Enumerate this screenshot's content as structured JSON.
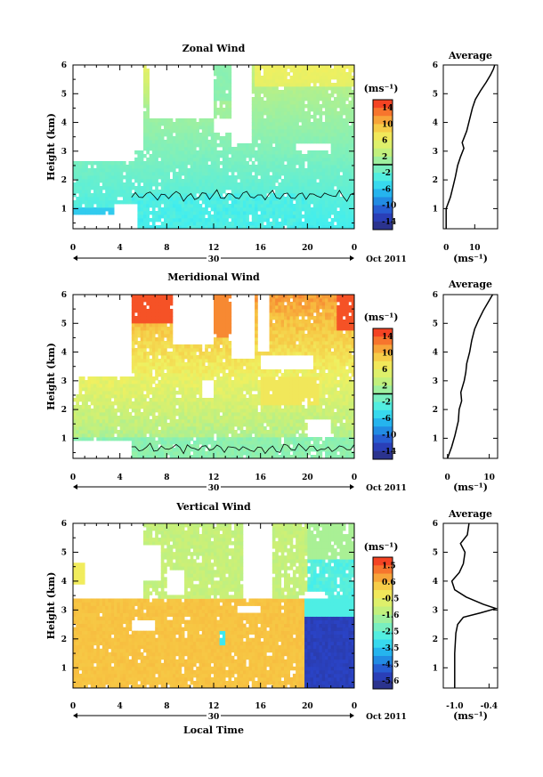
{
  "chart_data": [
    {
      "type": "heatmap",
      "title": "Zonal Wind",
      "xlabel": "",
      "ylabel": "Height (km)",
      "x_ticks": [
        "0",
        "4",
        "8",
        "12",
        "16",
        "20",
        "0"
      ],
      "xlim": [
        0,
        24
      ],
      "y_ticks": [
        "1",
        "2",
        "3",
        "4",
        "5",
        "6"
      ],
      "ylim": [
        0.3,
        6
      ],
      "date_marker": "30",
      "date_label": "Oct 2011",
      "colorbar": {
        "unit": "(ms⁻¹)",
        "ticks": [
          "14",
          "10",
          "6",
          "2",
          "-2",
          "-6",
          "-10",
          "-14"
        ],
        "range": [
          -16,
          16
        ]
      },
      "zero_contour": true,
      "average_panel": {
        "title": "Average",
        "xlabel": "(ms⁻¹)",
        "x_ticks": [
          "0",
          "10"
        ],
        "x_tick_values": [
          0,
          10
        ],
        "xlim": [
          -1,
          18
        ],
        "y_ticks": [
          "1",
          "2",
          "3",
          "4",
          "5",
          "6"
        ],
        "profile": [
          [
            0.0,
            0.3
          ],
          [
            0.0,
            1.0
          ],
          [
            1.5,
            1.4
          ],
          [
            2.5,
            1.8
          ],
          [
            3.2,
            2.1
          ],
          [
            4.0,
            2.5
          ],
          [
            5.0,
            2.8
          ],
          [
            6.2,
            3.1
          ],
          [
            5.6,
            3.3
          ],
          [
            7.2,
            3.7
          ],
          [
            8.2,
            4.1
          ],
          [
            9.2,
            4.5
          ],
          [
            10.2,
            4.8
          ],
          [
            12.0,
            5.1
          ],
          [
            14.0,
            5.4
          ],
          [
            15.5,
            5.65
          ],
          [
            16.5,
            5.85
          ],
          [
            17.0,
            6.0
          ]
        ]
      }
    },
    {
      "type": "heatmap",
      "title": "Meridional Wind",
      "xlabel": "",
      "ylabel": "Height (km)",
      "x_ticks": [
        "0",
        "4",
        "8",
        "12",
        "16",
        "20",
        "0"
      ],
      "xlim": [
        0,
        24
      ],
      "y_ticks": [
        "1",
        "2",
        "3",
        "4",
        "5",
        "6"
      ],
      "ylim": [
        0.3,
        6
      ],
      "date_marker": "30",
      "date_label": "Oct 2011",
      "colorbar": {
        "unit": "(ms⁻¹)",
        "ticks": [
          "14",
          "10",
          "6",
          "2",
          "-2",
          "-6",
          "-10",
          "-14"
        ],
        "range": [
          -16,
          16
        ]
      },
      "zero_contour": true,
      "average_panel": {
        "title": "Average",
        "xlabel": "(ms⁻¹)",
        "x_ticks": [
          "0",
          "10"
        ],
        "x_tick_values": [
          0,
          10
        ],
        "xlim": [
          -1,
          12
        ],
        "y_ticks": [
          "1",
          "2",
          "3",
          "4",
          "5",
          "6"
        ],
        "profile": [
          [
            0.0,
            0.3
          ],
          [
            1.0,
            0.7
          ],
          [
            1.8,
            1.1
          ],
          [
            2.6,
            1.6
          ],
          [
            2.8,
            2.0
          ],
          [
            3.4,
            2.3
          ],
          [
            3.2,
            2.6
          ],
          [
            4.0,
            3.0
          ],
          [
            4.4,
            3.3
          ],
          [
            4.6,
            3.6
          ],
          [
            5.3,
            4.0
          ],
          [
            5.8,
            4.4
          ],
          [
            6.5,
            4.8
          ],
          [
            7.4,
            5.1
          ],
          [
            8.6,
            5.45
          ],
          [
            10.0,
            5.8
          ],
          [
            10.8,
            6.0
          ]
        ]
      }
    },
    {
      "type": "heatmap",
      "title": "Vertical Wind",
      "xlabel": "Local Time",
      "ylabel": "Height (km)",
      "x_ticks": [
        "0",
        "4",
        "8",
        "12",
        "16",
        "20",
        "0"
      ],
      "xlim": [
        0,
        24
      ],
      "y_ticks": [
        "1",
        "2",
        "3",
        "4",
        "5",
        "6"
      ],
      "ylim": [
        0.3,
        6
      ],
      "date_marker": "30",
      "date_label": "Oct 2011",
      "colorbar": {
        "unit": "(ms⁻¹)",
        "ticks": [
          "1.5",
          "0.6",
          "-0.5",
          "-1.6",
          "-2.5",
          "-3.5",
          "-4.5",
          "-5.6"
        ],
        "range": [
          -6.0,
          2.0
        ]
      },
      "zero_contour": false,
      "average_panel": {
        "title": "Average",
        "xlabel": "(ms⁻¹)",
        "x_ticks": [
          "-1.0",
          "-0.4"
        ],
        "x_tick_values": [
          -1.0,
          -0.4
        ],
        "xlim": [
          -1.2,
          -0.25
        ],
        "y_ticks": [
          "1",
          "2",
          "3",
          "4",
          "5",
          "6"
        ],
        "profile": [
          [
            -1.0,
            0.3
          ],
          [
            -1.0,
            1.5
          ],
          [
            -0.98,
            2.2
          ],
          [
            -0.95,
            2.5
          ],
          [
            -0.85,
            2.75
          ],
          [
            -0.55,
            2.9
          ],
          [
            -0.28,
            3.05
          ],
          [
            -0.5,
            3.2
          ],
          [
            -0.8,
            3.45
          ],
          [
            -1.0,
            3.7
          ],
          [
            -1.05,
            4.0
          ],
          [
            -0.92,
            4.3
          ],
          [
            -0.85,
            4.6
          ],
          [
            -0.82,
            5.0
          ],
          [
            -0.9,
            5.3
          ],
          [
            -0.78,
            5.6
          ],
          [
            -0.75,
            6.0
          ]
        ]
      }
    }
  ]
}
